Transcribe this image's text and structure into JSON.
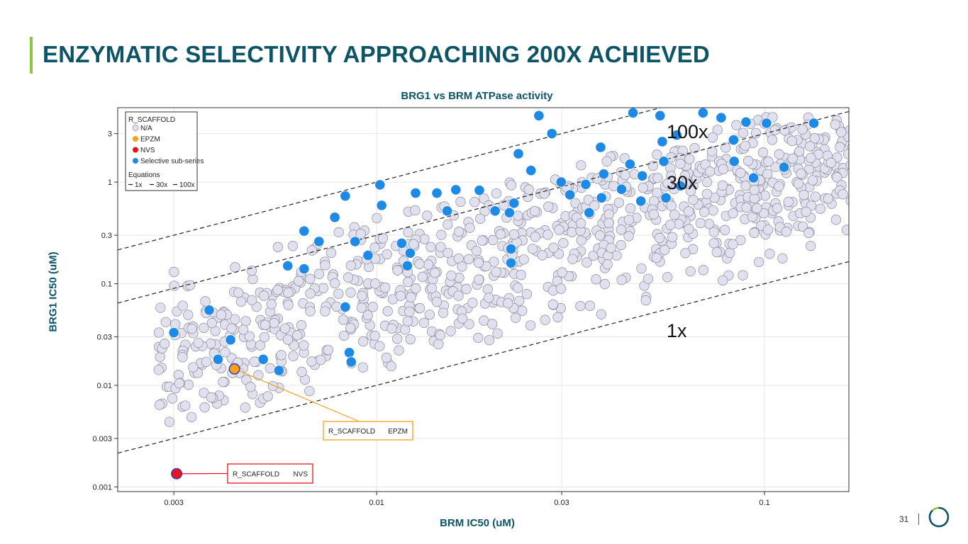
{
  "slide": {
    "title": "ENZYMATIC SELECTIVITY APPROACHING 200X ACHIEVED",
    "page_number": "31",
    "accent_color": "#8cc63f",
    "title_color": "#0d5566"
  },
  "chart_data": {
    "type": "scatter",
    "title": "BRG1 vs BRM ATPase activity",
    "xlabel": "BRM IC50 (uM)",
    "ylabel": "BRG1 IC50 (uM)",
    "xscale": "log",
    "yscale": "log",
    "xlim": [
      0.00215,
      0.165
    ],
    "ylim": [
      0.0009,
      5.4
    ],
    "x_ticks": [
      {
        "value": 0.003,
        "label": "0.003"
      },
      {
        "value": 0.01,
        "label": "0.01"
      },
      {
        "value": 0.03,
        "label": "0.03"
      },
      {
        "value": 0.1,
        "label": "0.1"
      }
    ],
    "y_ticks": [
      {
        "value": 0.001,
        "label": "0.001"
      },
      {
        "value": 0.003,
        "label": "0.003"
      },
      {
        "value": 0.01,
        "label": "0.01"
      },
      {
        "value": 0.03,
        "label": "0.03"
      },
      {
        "value": 0.1,
        "label": "0.1"
      },
      {
        "value": 0.3,
        "label": "0.3"
      },
      {
        "value": 1,
        "label": "1"
      },
      {
        "value": 3,
        "label": "3"
      }
    ],
    "grid": true,
    "legend": {
      "position": "top-left",
      "title": "R_SCAFFOLD",
      "entries": [
        {
          "name": "N/A",
          "color": "#e1e0ee"
        },
        {
          "name": "EPZM",
          "color": "#f4a21a"
        },
        {
          "name": "NVS",
          "color": "#e8141c"
        },
        {
          "name": "Selective sub-series",
          "color": "#1f8ae6"
        }
      ],
      "equations_title": "Equations",
      "equations": [
        "1x",
        "30x",
        "100x"
      ]
    },
    "equation_lines": [
      {
        "label": "1x",
        "ratio": 1
      },
      {
        "label": "30x",
        "ratio": 30
      },
      {
        "label": "100x",
        "ratio": 100
      }
    ],
    "series": [
      {
        "name": "Selective sub-series",
        "color": "#1f8ae6",
        "points": [
          [
            0.003,
            0.033
          ],
          [
            0.0037,
            0.055
          ],
          [
            0.0042,
            0.028
          ],
          [
            0.0039,
            0.018
          ],
          [
            0.0051,
            0.018
          ],
          [
            0.0056,
            0.014
          ],
          [
            0.0059,
            0.15
          ],
          [
            0.0065,
            0.14
          ],
          [
            0.0065,
            0.33
          ],
          [
            0.0071,
            0.26
          ],
          [
            0.0078,
            0.45
          ],
          [
            0.0083,
            0.73
          ],
          [
            0.0088,
            0.26
          ],
          [
            0.0083,
            0.059
          ],
          [
            0.0085,
            0.021
          ],
          [
            0.0086,
            0.017
          ],
          [
            0.0102,
            0.94
          ],
          [
            0.0103,
            0.59
          ],
          [
            0.0116,
            0.25
          ],
          [
            0.0122,
            0.2
          ],
          [
            0.0126,
            0.78
          ],
          [
            0.0143,
            0.78
          ],
          [
            0.0152,
            0.52
          ],
          [
            0.016,
            0.84
          ],
          [
            0.0184,
            0.83
          ],
          [
            0.0202,
            0.52
          ],
          [
            0.0222,
            0.22
          ],
          [
            0.0226,
            0.62
          ],
          [
            0.0232,
            1.9
          ],
          [
            0.0222,
            0.16
          ],
          [
            0.025,
            1.3
          ],
          [
            0.0262,
            4.5
          ],
          [
            0.0283,
            3.0
          ],
          [
            0.0299,
            1.0
          ],
          [
            0.0315,
            0.75
          ],
          [
            0.0346,
            0.95
          ],
          [
            0.0353,
            0.5
          ],
          [
            0.0378,
            2.2
          ],
          [
            0.0385,
            1.2
          ],
          [
            0.0428,
            0.85
          ],
          [
            0.0458,
            4.8
          ],
          [
            0.0484,
            1.15
          ],
          [
            0.0538,
            4.5
          ],
          [
            0.0545,
            2.5
          ],
          [
            0.0557,
            0.7
          ],
          [
            0.0594,
            2.9
          ],
          [
            0.0607,
            0.92
          ],
          [
            0.0694,
            4.8
          ],
          [
            0.0773,
            4.3
          ],
          [
            0.0832,
            2.6
          ],
          [
            0.0896,
            3.9
          ],
          [
            0.0835,
            1.6
          ],
          [
            0.1012,
            3.8
          ],
          [
            0.0937,
            1.1
          ],
          [
            0.134,
            3.8
          ],
          [
            0.1123,
            1.4
          ],
          [
            0.055,
            1.6
          ],
          [
            0.038,
            0.7
          ],
          [
            0.048,
            0.65
          ],
          [
            0.022,
            0.5
          ],
          [
            0.045,
            1.5
          ],
          [
            0.012,
            0.15
          ],
          [
            0.0095,
            0.19
          ]
        ]
      },
      {
        "name": "EPZM",
        "color": "#f4a21a",
        "points": [
          [
            0.0043,
            0.0145
          ]
        ],
        "callout": {
          "series_label": "R_SCAFFOLD",
          "value_label": "EPZM",
          "border_color": "#f4a21a"
        }
      },
      {
        "name": "NVS",
        "color": "#e8141c",
        "points": [
          [
            0.00305,
            0.00135
          ]
        ],
        "callout": {
          "series_label": "R_SCAFFOLD",
          "value_label": "NVS",
          "border_color": "#e8141c"
        }
      }
    ],
    "background_series": {
      "name": "N/A",
      "color": "#e1e0ee",
      "count": 900,
      "description": "Dense cloud of compounds between the 1x and 30x lines, spanning BRM 0.0027-0.17 uM and BRG1 0.005-4 uM"
    }
  }
}
